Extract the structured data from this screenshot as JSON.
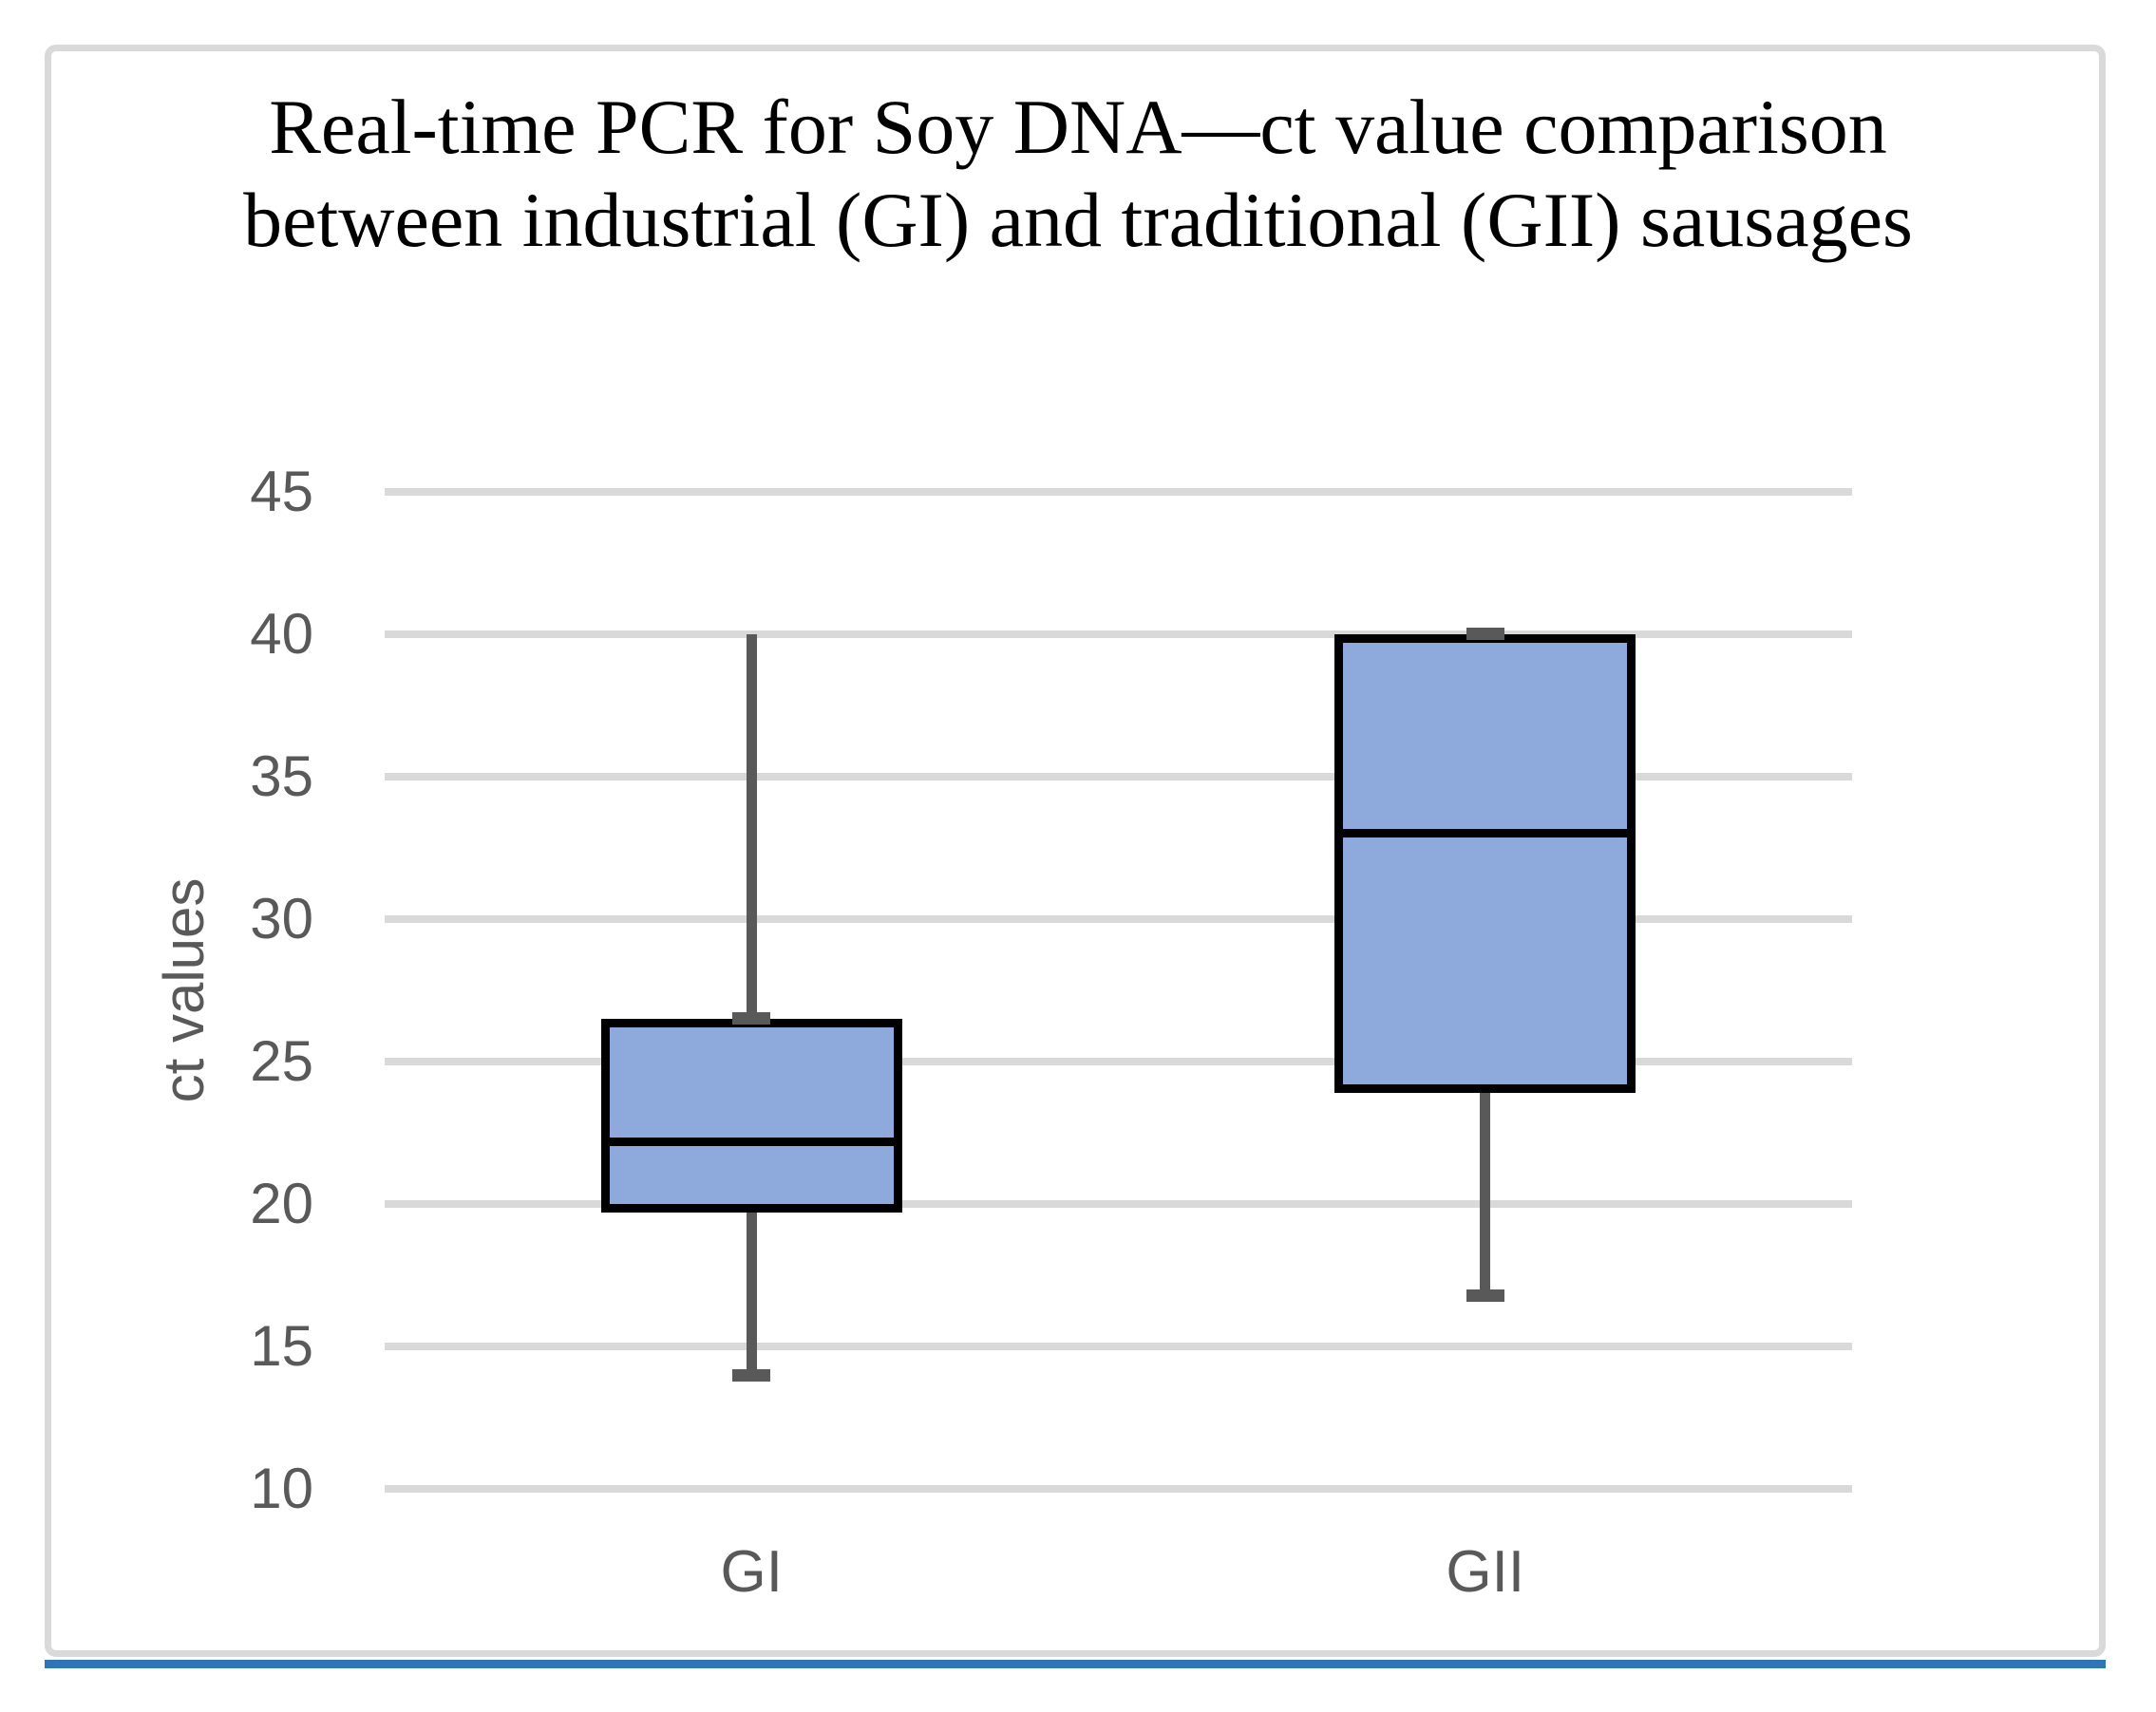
{
  "figure": {
    "title_line1": "Real-time PCR for Soy DNA—ct value comparison",
    "title_line2": "between industrial (GI) and traditional (GII) sausages"
  },
  "chart_data": {
    "type": "box",
    "title": "Real-time PCR for Soy DNA—ct value comparison between industrial (GI) and traditional (GII) sausages",
    "ylabel": "ct values",
    "xlabel": "",
    "categories": [
      "GI",
      "GII"
    ],
    "series": [
      {
        "name": "GI",
        "whisker_low": 14.0,
        "q1": 19.7,
        "median": 22.2,
        "q3": 26.5,
        "whisker_high": 40.0
      },
      {
        "name": "GII",
        "whisker_low": 16.8,
        "q1": 23.9,
        "median": 33.0,
        "q3": 40.0,
        "whisker_high": 40.0
      }
    ],
    "yticks": [
      45,
      40,
      35,
      30,
      25,
      20,
      15,
      10
    ],
    "ylim": [
      10,
      45
    ],
    "grid": true,
    "legend": false,
    "colors": {
      "box_fill": "#8EA9DC",
      "box_border": "#000000",
      "whisker": "#595959",
      "gridline": "#D9D9D9",
      "axis_text": "#595959",
      "title_text": "#000000",
      "bottom_rule": "#2E75B6",
      "frame_border": "#D9D9D9"
    }
  }
}
